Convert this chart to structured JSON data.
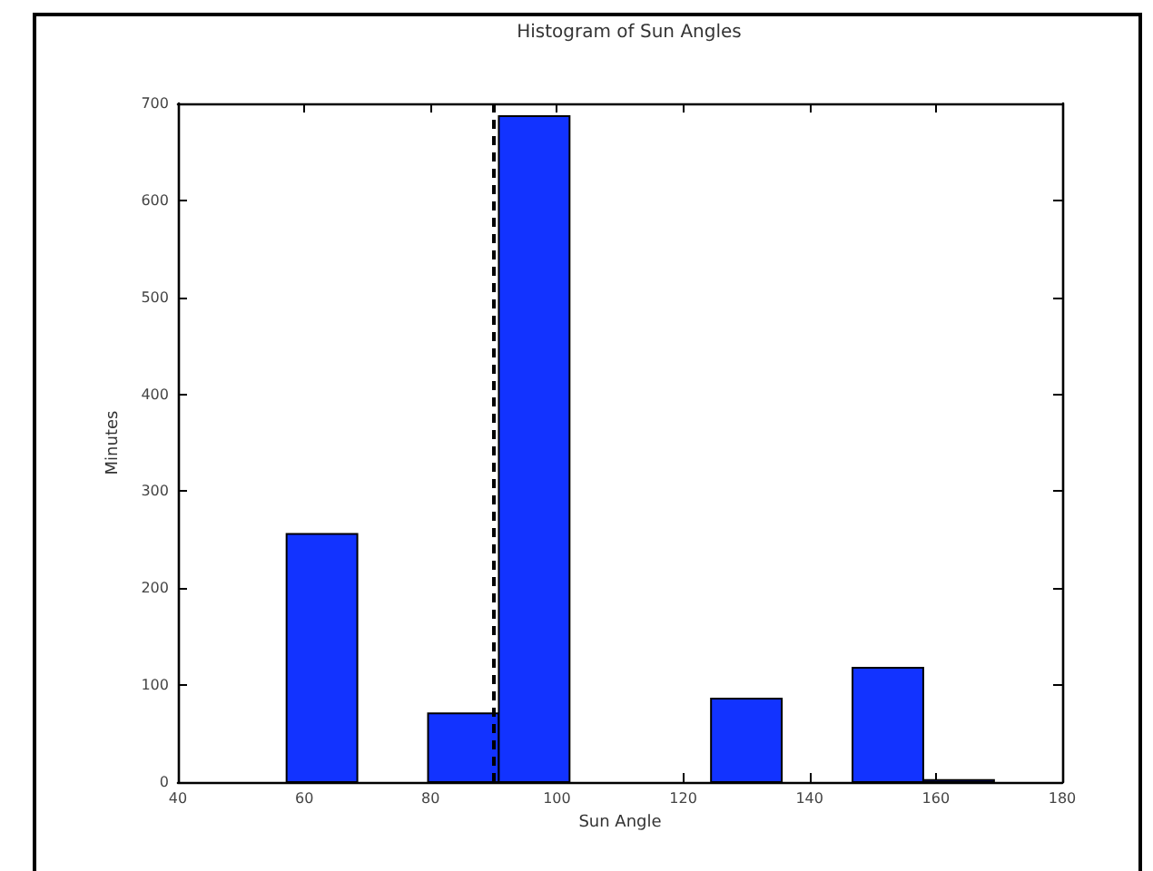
{
  "chart_data": {
    "type": "histogram",
    "title": "Histogram of Sun Angles",
    "xlabel": "Sun Angle",
    "ylabel": "Minutes",
    "bins": [
      57.2,
      68.4,
      79.6,
      90.8,
      102.0,
      113.2,
      124.4,
      135.6,
      146.8,
      158.0,
      169.2
    ],
    "values": [
      256,
      0,
      71,
      687,
      0,
      0,
      86,
      0,
      118,
      2
    ],
    "color": "#1233ff",
    "xlim": [
      40,
      180
    ],
    "xticks": [
      40,
      60,
      80,
      100,
      120,
      140,
      160,
      180
    ],
    "ylim": [
      0,
      700
    ],
    "yticks": [
      0,
      100,
      200,
      300,
      400,
      500,
      600,
      700
    ],
    "grid": false,
    "ref_lines": [
      {
        "axis": "x",
        "value": 90,
        "color": "#000000",
        "line_style": "dashed"
      }
    ]
  }
}
